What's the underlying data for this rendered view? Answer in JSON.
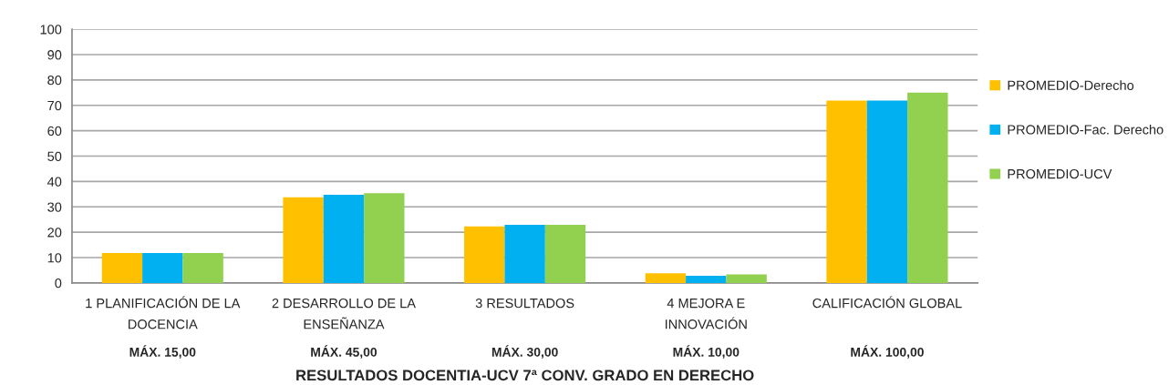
{
  "chart_data": {
    "type": "bar",
    "categories": [
      "1 PLANIFICACIÓN DE LA\nDOCENCIA",
      "2 DESARROLLO DE LA\nENSEÑANZA",
      "3 RESULTADOS",
      "4 MEJORA E\nINNOVACIÓN",
      "CALIFICACIÓN GLOBAL"
    ],
    "series": [
      {
        "name": "PROMEDIO-Derecho",
        "color": "#ffc000",
        "values": [
          11.8,
          33.8,
          22.3,
          3.8,
          71.9
        ]
      },
      {
        "name": "PROMEDIO-Fac. Derecho",
        "color": "#00b0f0",
        "values": [
          11.8,
          34.8,
          22.9,
          2.8,
          71.9
        ]
      },
      {
        "name": "PROMEDIO-UCV",
        "color": "#92d050",
        "values": [
          11.8,
          35.4,
          22.9,
          3.4,
          75.0
        ]
      }
    ],
    "ylim": [
      0,
      100
    ],
    "yticks": [
      0,
      10,
      20,
      30,
      40,
      50,
      60,
      70,
      80,
      90,
      100
    ],
    "grid": "y",
    "legend": "right",
    "xlabel": "RESULTADOS DOCENTIA-UCV 7ª CONV. GRADO EN DERECHO",
    "annotations": [
      "MÁX. 15,00",
      "MÁX. 45,00",
      "MÁX. 30,00",
      "MÁX. 10,00",
      "MÁX. 100,00"
    ]
  }
}
